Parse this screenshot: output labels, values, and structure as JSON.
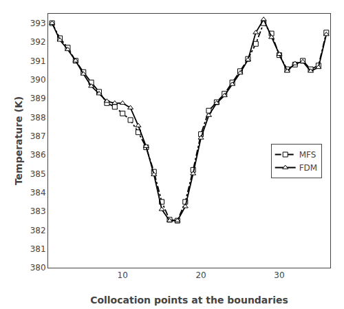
{
  "chart_data": {
    "type": "line",
    "x": [
      1,
      2,
      3,
      4,
      5,
      6,
      7,
      8,
      9,
      10,
      11,
      12,
      13,
      14,
      15,
      16,
      17,
      18,
      19,
      20,
      21,
      22,
      23,
      24,
      25,
      26,
      27,
      28,
      29,
      30,
      31,
      32,
      33,
      34,
      35,
      36
    ],
    "series": [
      {
        "name": "MFS",
        "color": "#000000",
        "line_style": "dashdot",
        "marker": "square",
        "values": [
          393.0,
          392.2,
          391.7,
          391.0,
          390.4,
          389.85,
          389.35,
          388.75,
          388.55,
          388.2,
          387.85,
          387.2,
          386.4,
          385.1,
          383.5,
          382.55,
          382.5,
          383.5,
          385.2,
          387.1,
          388.35,
          388.8,
          389.25,
          389.85,
          390.45,
          391.1,
          391.9,
          393.0,
          392.45,
          391.3,
          390.55,
          390.8,
          391.0,
          390.55,
          390.75,
          392.5
        ]
      },
      {
        "name": "FDM",
        "color": "#000000",
        "line_style": "solid",
        "marker": "triangle-up",
        "values": [
          393.0,
          392.1,
          391.6,
          391.0,
          390.3,
          389.65,
          389.25,
          388.85,
          388.75,
          388.75,
          388.5,
          387.55,
          386.45,
          384.95,
          383.1,
          382.5,
          382.5,
          383.25,
          385.0,
          386.9,
          388.1,
          388.75,
          389.15,
          389.75,
          390.35,
          391.05,
          392.5,
          393.2,
          392.25,
          391.35,
          390.45,
          390.85,
          390.95,
          390.45,
          390.65,
          392.4
        ]
      }
    ],
    "xlabel": "Collocation points at the boundaries",
    "ylabel": "Temperature (K)",
    "xlim": [
      0.5,
      36.5
    ],
    "ylim": [
      380,
      393.5
    ],
    "xticks": [
      10,
      20,
      30
    ],
    "yticks": [
      380,
      381,
      382,
      383,
      384,
      385,
      386,
      387,
      388,
      389,
      390,
      391,
      392,
      393
    ],
    "grid": false,
    "legend": "right"
  }
}
